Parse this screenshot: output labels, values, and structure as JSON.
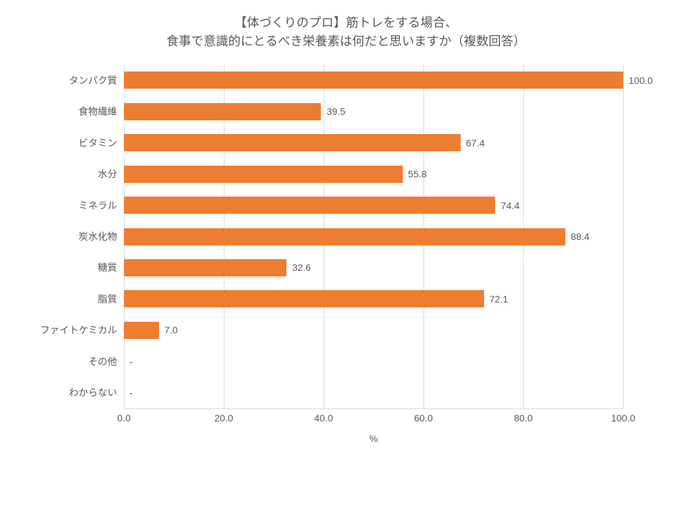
{
  "chart": {
    "type": "bar-horizontal",
    "title_line1": "【体づくりのプロ】筋トレをする場合、",
    "title_line2": "食事で意識的にとるべき栄養素は何だと思いますか（複数回答）",
    "title_fontsize": 18,
    "xlabel": "%",
    "xlim": [
      0,
      100
    ],
    "xtick_step": 20,
    "xticks": [
      "0.0",
      "20.0",
      "40.0",
      "60.0",
      "80.0",
      "100.0"
    ],
    "bar_color": "#ed7d31",
    "grid_color": "#d9d9d9",
    "text_color": "#595959",
    "background_color": "#ffffff",
    "label_fontsize": 14,
    "bar_height_ratio": 0.55,
    "categories": [
      {
        "label": "タンパク質",
        "value": 100.0,
        "display": "100.0"
      },
      {
        "label": "食物繊維",
        "value": 39.5,
        "display": "39.5"
      },
      {
        "label": "ビタミン",
        "value": 67.4,
        "display": "67.4"
      },
      {
        "label": "水分",
        "value": 55.8,
        "display": "55.8"
      },
      {
        "label": "ミネラル",
        "value": 74.4,
        "display": "74.4"
      },
      {
        "label": "炭水化物",
        "value": 88.4,
        "display": "88.4"
      },
      {
        "label": "糖質",
        "value": 32.6,
        "display": "32.6"
      },
      {
        "label": "脂質",
        "value": 72.1,
        "display": "72.1"
      },
      {
        "label": "ファイトケミカル",
        "value": 7.0,
        "display": "7.0"
      },
      {
        "label": "その他",
        "value": 0,
        "display": "-"
      },
      {
        "label": "わからない",
        "value": 0,
        "display": "-"
      }
    ]
  }
}
